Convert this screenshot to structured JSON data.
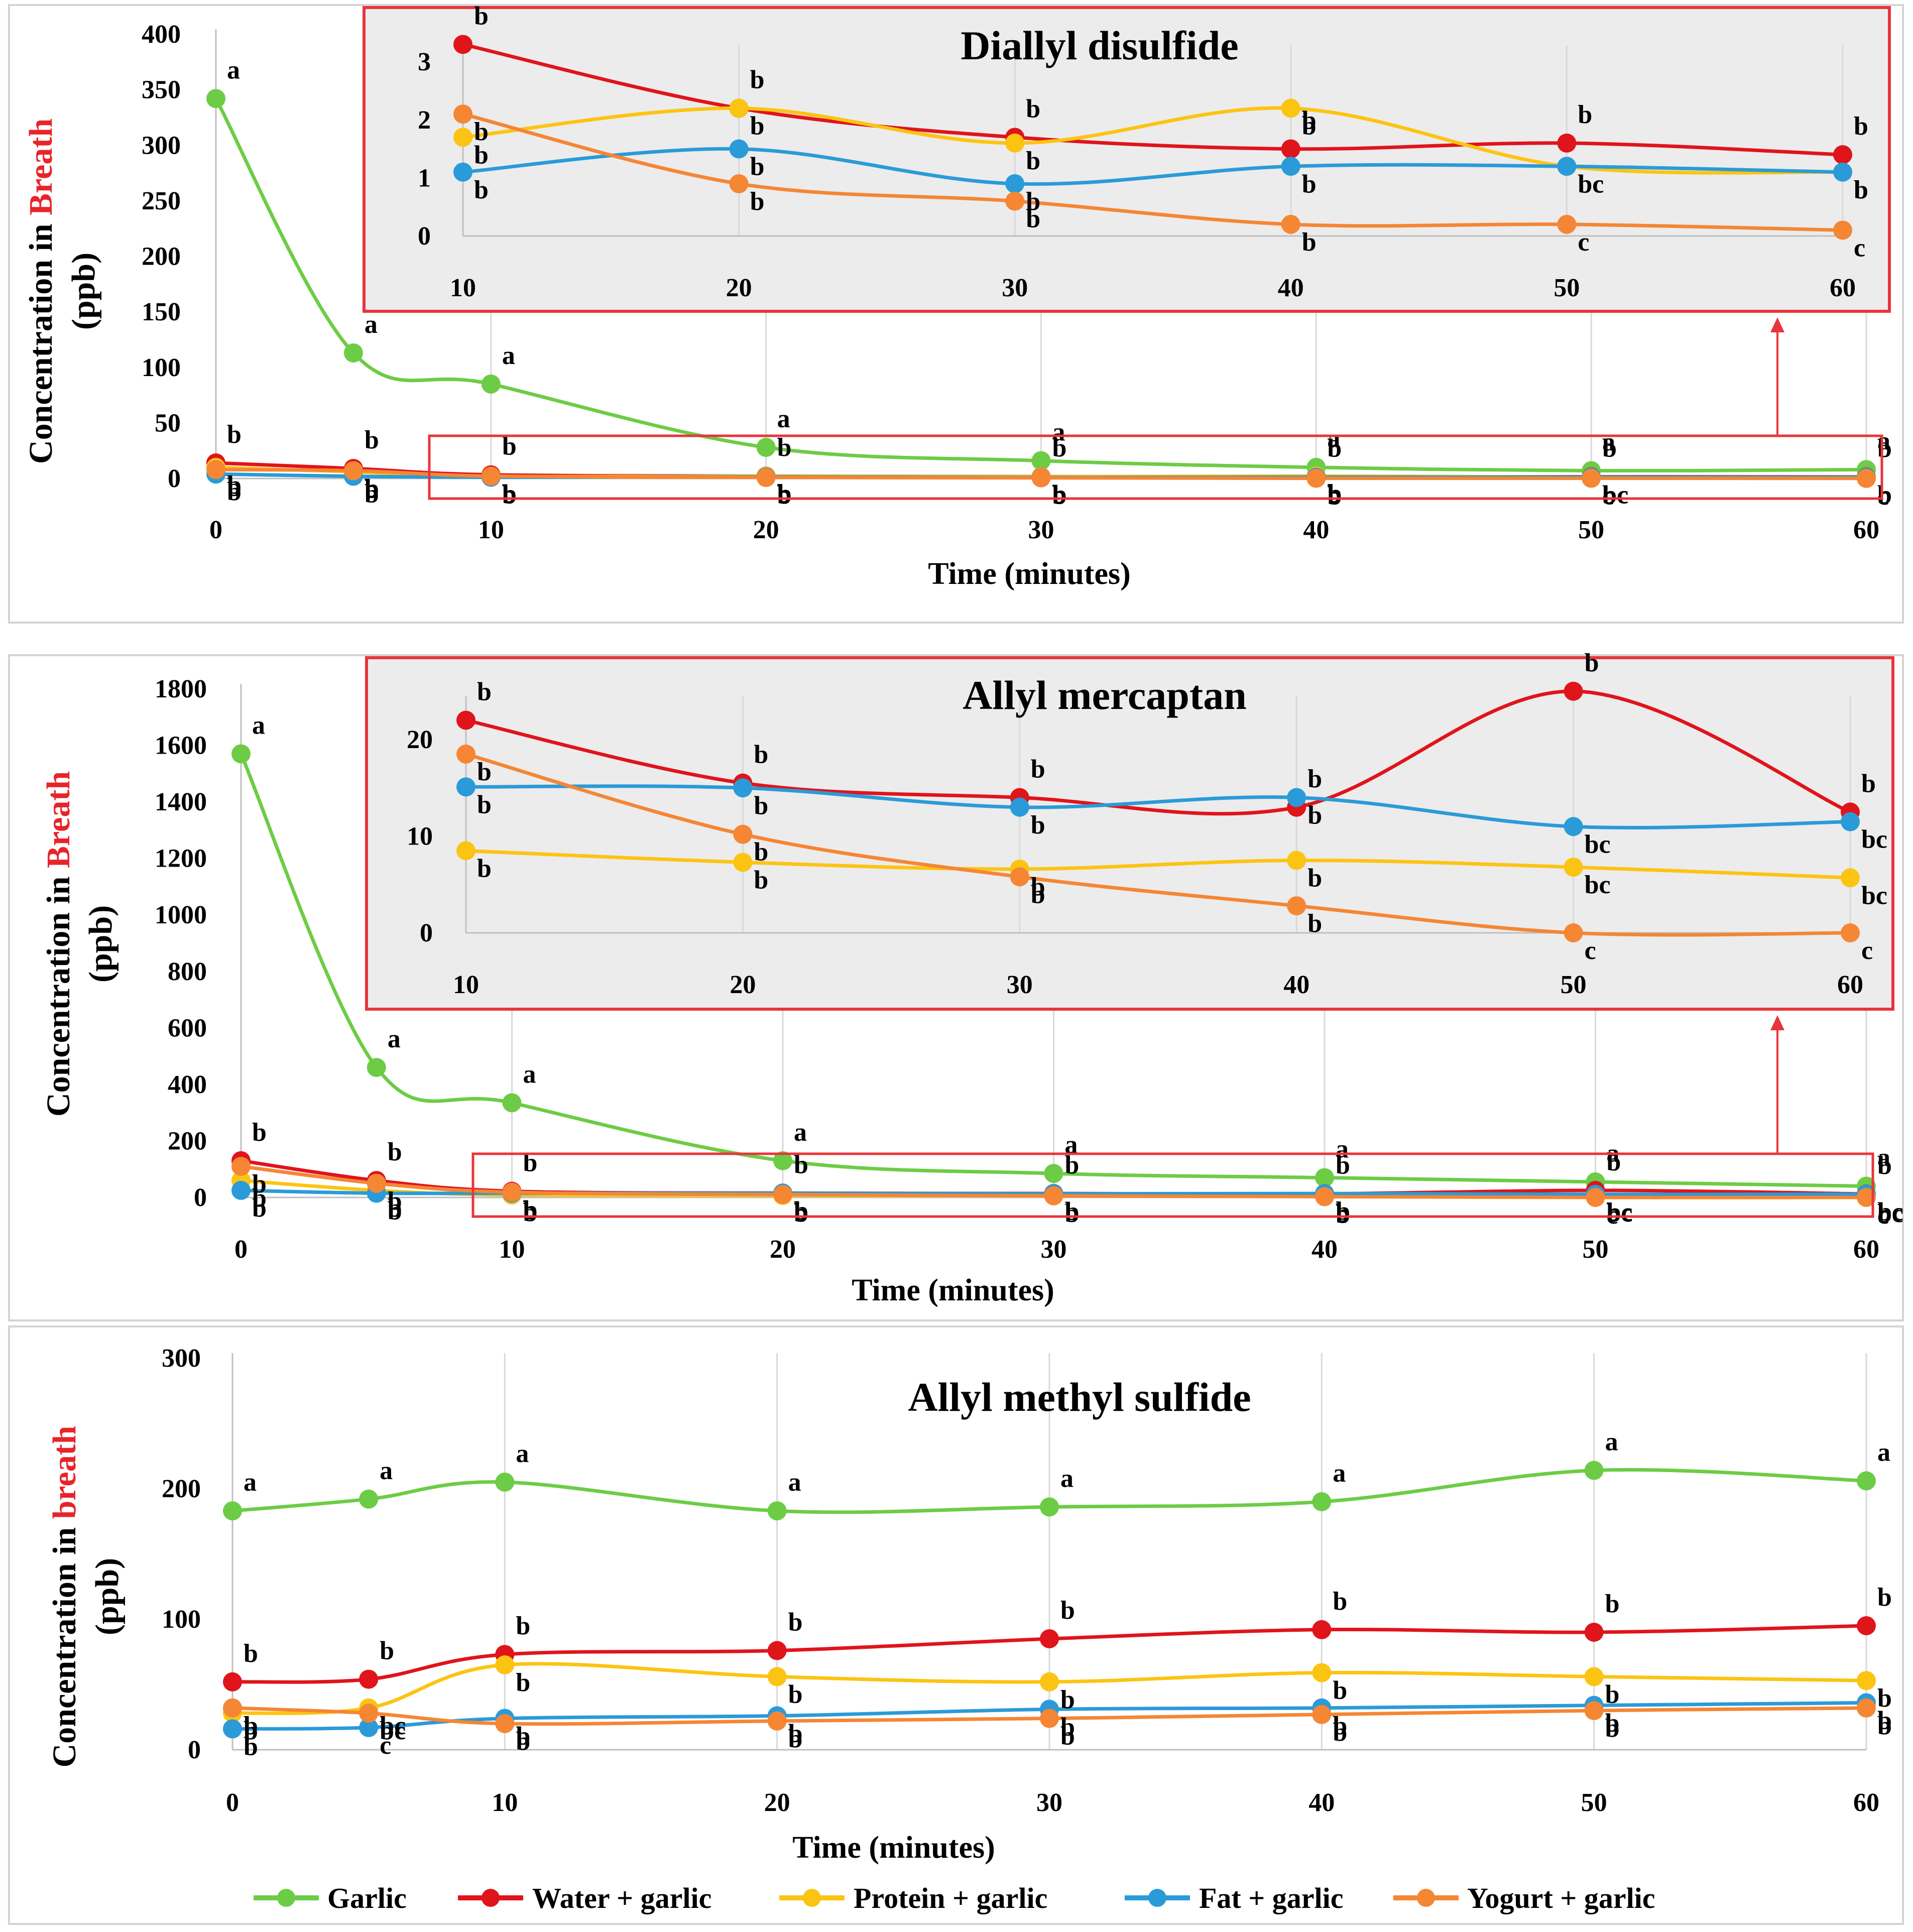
{
  "chart_data": [
    {
      "type": "line",
      "title": "Diallyl disulfide",
      "xlabel": "Time (minutes)",
      "ylabel_prefix": "Concentration in ",
      "ylabel_highlight": "Breath",
      "ylabel_unit": "(ppb)",
      "ylim": [
        0,
        400
      ],
      "yticks": [
        0,
        50,
        100,
        150,
        200,
        250,
        300,
        350,
        400
      ],
      "xlim": [
        0,
        60
      ],
      "xticks": [
        0,
        10,
        20,
        30,
        40,
        50,
        60
      ],
      "x": [
        0,
        5,
        10,
        20,
        30,
        40,
        50,
        60
      ],
      "series": [
        {
          "name": "Garlic",
          "values": [
            342,
            113,
            85,
            28,
            16,
            10,
            7,
            8
          ],
          "labels": [
            "a",
            "a",
            "a",
            "a",
            "a",
            "a",
            "a",
            "a"
          ]
        },
        {
          "name": "Water + garlic",
          "values": [
            14,
            9,
            3.3,
            2.2,
            1.7,
            1.5,
            1.6,
            1.4
          ],
          "labels": [
            "b",
            "b",
            "b",
            "b",
            "b",
            "b",
            "b",
            "b"
          ]
        },
        {
          "name": "Protein + garlic",
          "values": [
            10,
            6,
            1.7,
            2.2,
            1.6,
            2.2,
            1.2,
            1.1
          ],
          "labels": [
            "b",
            "b",
            "b",
            "b",
            "b",
            "b",
            "bc",
            "b"
          ]
        },
        {
          "name": "Fat + garlic",
          "values": [
            4,
            2,
            1.1,
            1.5,
            0.9,
            1.2,
            1.2,
            1.1
          ],
          "labels": [
            "b",
            "b",
            "b",
            "b",
            "b",
            "b",
            "bc",
            "b"
          ]
        },
        {
          "name": "Yogurt + garlic",
          "values": [
            8,
            7,
            2.1,
            0.9,
            0.6,
            0.2,
            0.2,
            0.1
          ],
          "labels": [
            "b",
            "b",
            "b",
            "b",
            "b",
            "b",
            "c",
            "c"
          ]
        }
      ],
      "inset": {
        "xlim": [
          10,
          60
        ],
        "xticks": [
          10,
          20,
          30,
          40,
          50,
          60
        ],
        "ylim": [
          0,
          3.2
        ],
        "yticks": [
          0,
          1,
          2,
          3
        ]
      }
    },
    {
      "type": "line",
      "title": "Allyl mercaptan",
      "xlabel": "Time (minutes)",
      "ylabel_prefix": "Concentration in ",
      "ylabel_highlight": "Breath",
      "ylabel_unit": "(ppb)",
      "ylim": [
        0,
        1800
      ],
      "yticks": [
        0,
        200,
        400,
        600,
        800,
        1000,
        1200,
        1400,
        1600,
        1800
      ],
      "xlim": [
        0,
        60
      ],
      "xticks": [
        0,
        10,
        20,
        30,
        40,
        50,
        60
      ],
      "x": [
        0,
        5,
        10,
        20,
        30,
        40,
        50,
        60
      ],
      "series": [
        {
          "name": "Garlic",
          "values": [
            1570,
            460,
            335,
            130,
            85,
            70,
            55,
            40
          ],
          "labels": [
            "a",
            "a",
            "a",
            "a",
            "a",
            "a",
            "a",
            "a"
          ]
        },
        {
          "name": "Water + garlic",
          "values": [
            130,
            60,
            22,
            15.5,
            14,
            13,
            25,
            12.5
          ],
          "labels": [
            "b",
            "b",
            "b",
            "b",
            "b",
            "b",
            "b",
            "b"
          ]
        },
        {
          "name": "Protein + garlic",
          "values": [
            60,
            25,
            8.5,
            7.3,
            6.6,
            7.5,
            6.8,
            5.7
          ],
          "labels": [
            "b",
            "b",
            "b",
            "b",
            "b",
            "b",
            "bc",
            "bc"
          ]
        },
        {
          "name": "Fat + garlic",
          "values": [
            25,
            15,
            15.1,
            15,
            13,
            14,
            11,
            11.5
          ],
          "labels": [
            "b",
            "b",
            "b",
            "b",
            "b",
            "b",
            "bc",
            "bc"
          ]
        },
        {
          "name": "Yogurt + garlic",
          "values": [
            110,
            50,
            18.5,
            10.2,
            5.8,
            2.8,
            0,
            0
          ],
          "labels": [
            "b",
            "b",
            "b",
            "b",
            "b",
            "b",
            "c",
            "c"
          ]
        }
      ],
      "inset": {
        "xlim": [
          10,
          60
        ],
        "xticks": [
          10,
          20,
          30,
          40,
          50,
          60
        ],
        "ylim": [
          0,
          24
        ],
        "yticks": [
          0,
          10,
          20
        ]
      }
    },
    {
      "type": "line",
      "title": "Allyl methyl sulfide",
      "xlabel": "Time (minutes)",
      "ylabel_prefix": "Concentration in ",
      "ylabel_highlight": "breath",
      "ylabel_unit": "(ppb)",
      "ylim": [
        0,
        300
      ],
      "yticks": [
        0,
        100,
        200,
        300
      ],
      "xlim": [
        0,
        60
      ],
      "xticks": [
        0,
        10,
        20,
        30,
        40,
        50,
        60
      ],
      "x": [
        0,
        5,
        10,
        20,
        30,
        40,
        50,
        60
      ],
      "series": [
        {
          "name": "Garlic",
          "values": [
            183,
            192,
            205,
            183,
            186,
            190,
            214,
            206
          ],
          "labels": [
            "a",
            "a",
            "a",
            "a",
            "a",
            "a",
            "a",
            "a"
          ]
        },
        {
          "name": "Water + garlic",
          "values": [
            52,
            54,
            73,
            76,
            85,
            92,
            90,
            95
          ],
          "labels": [
            "b",
            "b",
            "b",
            "b",
            "b",
            "b",
            "b",
            "b"
          ]
        },
        {
          "name": "Protein + garlic",
          "values": [
            28,
            32,
            65,
            56,
            52,
            59,
            56,
            53
          ],
          "labels": [
            "b",
            "bc",
            "b",
            "b",
            "b",
            "b",
            "b",
            "b"
          ]
        },
        {
          "name": "Fat + garlic",
          "values": [
            16,
            17,
            24,
            26,
            31,
            32,
            34,
            36
          ],
          "labels": [
            "b",
            "c",
            "b",
            "b",
            "b",
            "b",
            "b",
            "b"
          ]
        },
        {
          "name": "Yogurt + garlic",
          "values": [
            32,
            28,
            20,
            22,
            24,
            27,
            30,
            32
          ],
          "labels": [
            "b",
            "bc",
            "b",
            "b",
            "b",
            "b",
            "b",
            "b"
          ]
        }
      ]
    }
  ],
  "colors": {
    "Garlic": "#6dcc45",
    "Water + garlic": "#e0141b",
    "Protein + garlic": "#fcc412",
    "Fat + garlic": "#2a9bd8",
    "Yogurt + garlic": "#f58634",
    "frame": "#e8353b",
    "inset_bg": "#ececec",
    "grid": "#d9d9d9",
    "panel_border": "#d4d4d4"
  },
  "legend": [
    "Garlic",
    "Water + garlic",
    "Protein + garlic",
    "Fat + garlic",
    "Yogurt + garlic"
  ]
}
